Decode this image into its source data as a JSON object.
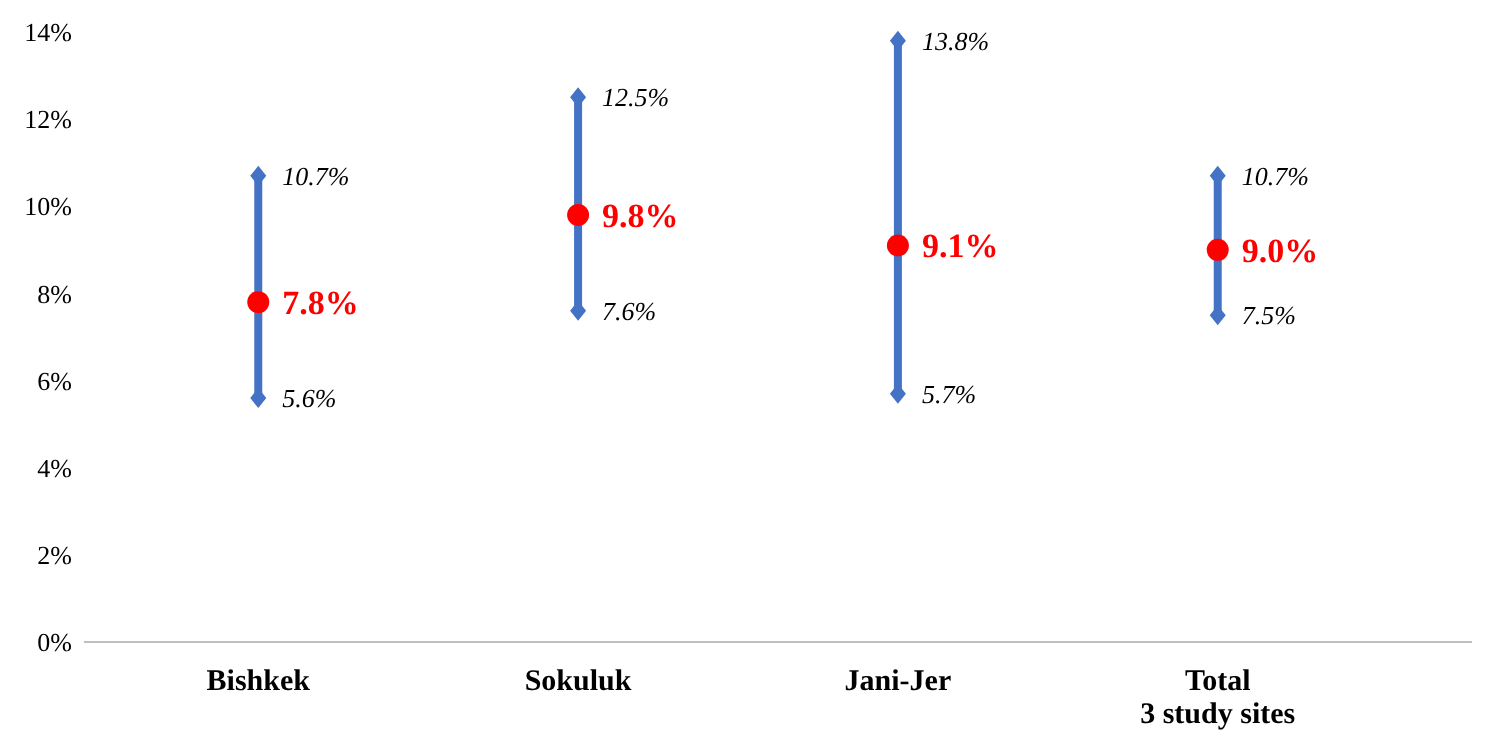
{
  "chart_data": {
    "type": "scatter",
    "categories": [
      "Bishkek",
      "Sokuluk",
      "Jani-Jer",
      "Total\n3 study sites"
    ],
    "series": [
      {
        "color": "#ff0000",
        "values": [
          7.8,
          9.8,
          9.1,
          9.0
        ],
        "errors": [
          [
            5.6,
            10.7
          ],
          [
            7.6,
            12.5
          ],
          [
            5.7,
            13.8
          ],
          [
            7.5,
            10.7
          ]
        ],
        "value_labels": [
          "7.8%",
          "9.8%",
          "9.1%",
          "9.0%"
        ]
      }
    ],
    "ylim": [
      0,
      14
    ],
    "yticks": [
      {
        "value": 0,
        "label": "0%"
      },
      {
        "value": 2,
        "label": "2%"
      },
      {
        "value": 4,
        "label": "4%"
      },
      {
        "value": 6,
        "label": "6%"
      },
      {
        "value": 8,
        "label": "8%"
      },
      {
        "value": 10,
        "label": "10%"
      },
      {
        "value": 12,
        "label": "12%"
      },
      {
        "value": 14,
        "label": "14%"
      }
    ],
    "annotations": [
      {
        "text": "10.7%",
        "x": "Bishkek",
        "y": 10.7
      },
      {
        "text": "5.6%",
        "x": "Bishkek",
        "y": 5.6
      },
      {
        "text": "12.5%",
        "x": "Sokuluk",
        "y": 12.5
      },
      {
        "text": "7.6%",
        "x": "Sokuluk",
        "y": 7.6
      },
      {
        "text": "13.8%",
        "x": "Jani-Jer",
        "y": 13.8
      },
      {
        "text": "5.7%",
        "x": "Jani-Jer",
        "y": 5.7
      },
      {
        "text": "10.7%",
        "x": "Total\n3 study sites",
        "y": 10.7
      },
      {
        "text": "7.5%",
        "x": "Total\n3 study sites",
        "y": 7.5
      }
    ],
    "marker": "circle",
    "grid": false
  }
}
